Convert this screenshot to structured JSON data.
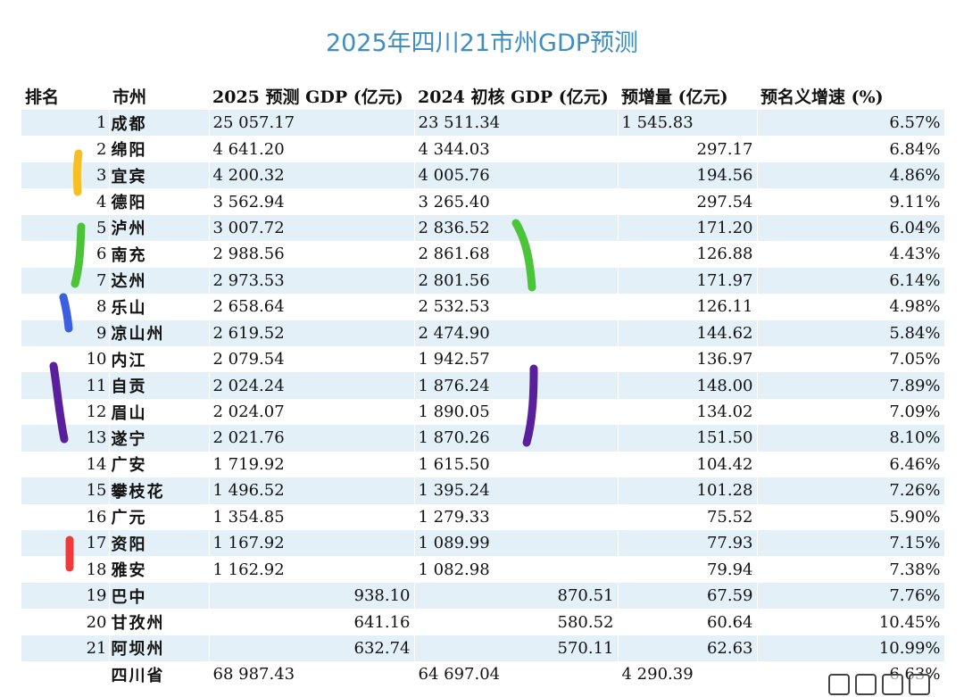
{
  "chart_data": {
    "type": "table",
    "title": "2025年四川21市州GDP预测",
    "columns": [
      "排名",
      "市州",
      "2025 预测 GDP (亿元)",
      "2024 初核 GDP (亿元)",
      "预增量 (亿元)",
      "预名义增速 (%)"
    ],
    "rows": [
      {
        "rank": "1",
        "city": "成都",
        "gdp2025": "25 057.17",
        "gdp2024": "23 511.34",
        "increase": "1 545.83",
        "growth": "6.57%"
      },
      {
        "rank": "2",
        "city": "绵阳",
        "gdp2025": "4 641.20",
        "gdp2024": "4 344.03",
        "increase": "297.17",
        "growth": "6.84%"
      },
      {
        "rank": "3",
        "city": "宜宾",
        "gdp2025": "4 200.32",
        "gdp2024": "4 005.76",
        "increase": "194.56",
        "growth": "4.86%"
      },
      {
        "rank": "4",
        "city": "德阳",
        "gdp2025": "3 562.94",
        "gdp2024": "3 265.40",
        "increase": "297.54",
        "growth": "9.11%"
      },
      {
        "rank": "5",
        "city": "泸州",
        "gdp2025": "3 007.72",
        "gdp2024": "2 836.52",
        "increase": "171.20",
        "growth": "6.04%"
      },
      {
        "rank": "6",
        "city": "南充",
        "gdp2025": "2 988.56",
        "gdp2024": "2 861.68",
        "increase": "126.88",
        "growth": "4.43%"
      },
      {
        "rank": "7",
        "city": "达州",
        "gdp2025": "2 973.53",
        "gdp2024": "2 801.56",
        "increase": "171.97",
        "growth": "6.14%"
      },
      {
        "rank": "8",
        "city": "乐山",
        "gdp2025": "2 658.64",
        "gdp2024": "2 532.53",
        "increase": "126.11",
        "growth": "4.98%"
      },
      {
        "rank": "9",
        "city": "凉山州",
        "gdp2025": "2 619.52",
        "gdp2024": "2 474.90",
        "increase": "144.62",
        "growth": "5.84%"
      },
      {
        "rank": "10",
        "city": "内江",
        "gdp2025": "2 079.54",
        "gdp2024": "1 942.57",
        "increase": "136.97",
        "growth": "7.05%"
      },
      {
        "rank": "11",
        "city": "自贡",
        "gdp2025": "2 024.24",
        "gdp2024": "1 876.24",
        "increase": "148.00",
        "growth": "7.89%"
      },
      {
        "rank": "12",
        "city": "眉山",
        "gdp2025": "2 024.07",
        "gdp2024": "1 890.05",
        "increase": "134.02",
        "growth": "7.09%"
      },
      {
        "rank": "13",
        "city": "遂宁",
        "gdp2025": "2 021.76",
        "gdp2024": "1 870.26",
        "increase": "151.50",
        "growth": "8.10%"
      },
      {
        "rank": "14",
        "city": "广安",
        "gdp2025": "1 719.92",
        "gdp2024": "1 615.50",
        "increase": "104.42",
        "growth": "6.46%"
      },
      {
        "rank": "15",
        "city": "攀枝花",
        "gdp2025": "1 496.52",
        "gdp2024": "1 395.24",
        "increase": "101.28",
        "growth": "7.26%"
      },
      {
        "rank": "16",
        "city": "广元",
        "gdp2025": "1 354.85",
        "gdp2024": "1 279.33",
        "increase": "75.52",
        "growth": "5.90%"
      },
      {
        "rank": "17",
        "city": "资阳",
        "gdp2025": "1 167.92",
        "gdp2024": "1 089.99",
        "increase": "77.93",
        "growth": "7.15%"
      },
      {
        "rank": "18",
        "city": "雅安",
        "gdp2025": "1 162.92",
        "gdp2024": "1 082.98",
        "increase": "79.94",
        "growth": "7.38%"
      },
      {
        "rank": "19",
        "city": "巴中",
        "gdp2025": "938.10",
        "gdp2024": "870.51",
        "increase": "67.59",
        "growth": "7.76%"
      },
      {
        "rank": "20",
        "city": "甘孜州",
        "gdp2025": "641.16",
        "gdp2024": "580.52",
        "increase": "60.64",
        "growth": "10.45%"
      },
      {
        "rank": "21",
        "city": "阿坝州",
        "gdp2025": "632.74",
        "gdp2024": "570.11",
        "increase": "62.63",
        "growth": "10.99%"
      },
      {
        "rank": "",
        "city": "四川省",
        "gdp2025": "68 987.43",
        "gdp2024": "64 697.04",
        "increase": "4 290.39",
        "growth": "6.63%"
      }
    ],
    "annotation_colors": {
      "yellow": "#f5c026",
      "green": "#4cc43a",
      "blue": "#3a5fe0",
      "purple": "#5a1f9a",
      "red": "#f03a3a"
    }
  }
}
